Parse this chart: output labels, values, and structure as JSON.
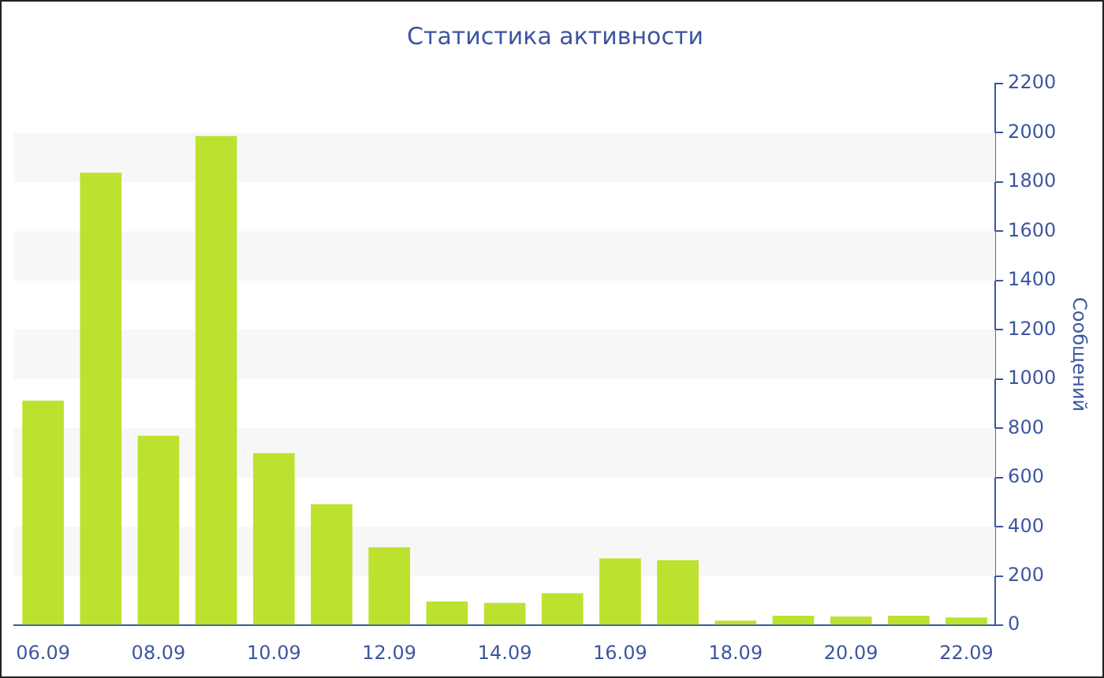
{
  "chart_data": {
    "type": "bar",
    "title": "Статистика активности",
    "ylabel": "Сообщений",
    "categories": [
      "06.09",
      null,
      "08.09",
      null,
      "10.09",
      null,
      "12.09",
      null,
      "14.09",
      null,
      "16.09",
      null,
      "18.09",
      null,
      "20.09",
      null,
      "22.09"
    ],
    "values": [
      912,
      1838,
      770,
      1987,
      699,
      492,
      317,
      97,
      91,
      130,
      272,
      265,
      19,
      39,
      36,
      39,
      32
    ],
    "color": "#bce22f",
    "ylim": [
      0,
      2200
    ],
    "yticks": [
      0,
      200,
      400,
      600,
      800,
      1000,
      1200,
      1400,
      1600,
      1800,
      2000,
      2200
    ],
    "legend": false
  }
}
